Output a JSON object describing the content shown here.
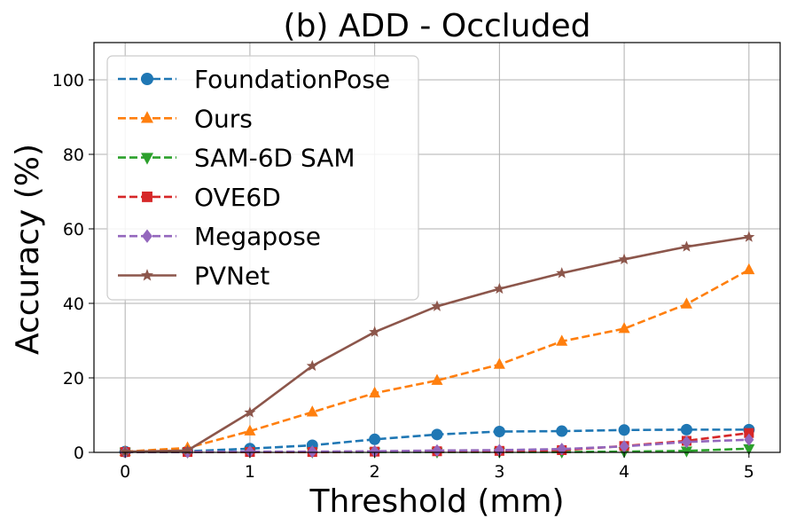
{
  "chart_data": {
    "type": "line",
    "title": "(b) ADD - Occluded",
    "xlabel": "Threshold (mm)",
    "ylabel": "Accuracy (%)",
    "xlim": [
      -0.25,
      5.25
    ],
    "ylim": [
      0,
      110
    ],
    "xticks": [
      0,
      1,
      2,
      3,
      4,
      5
    ],
    "yticks": [
      0,
      20,
      40,
      60,
      80,
      100
    ],
    "grid": true,
    "legend_position": "top-left",
    "x": [
      0,
      0.5,
      1,
      1.5,
      2,
      2.5,
      3,
      3.5,
      4,
      4.5,
      5
    ],
    "series": [
      {
        "name": "FoundationPose",
        "color": "#1f77b4",
        "marker": "circle",
        "linestyle": "dashed",
        "values": [
          0.2,
          0.3,
          1.0,
          1.9,
          3.5,
          4.8,
          5.6,
          5.7,
          6.0,
          6.1,
          6.1
        ]
      },
      {
        "name": "Ours",
        "color": "#ff7f0e",
        "marker": "triangle-up",
        "linestyle": "dashed",
        "values": [
          0.2,
          1.2,
          5.7,
          10.8,
          15.9,
          19.3,
          23.6,
          29.8,
          33.2,
          39.8,
          49.0
        ]
      },
      {
        "name": "SAM-6D SAM",
        "color": "#2ca02c",
        "marker": "triangle-down",
        "linestyle": "dashed",
        "values": [
          0.1,
          0.1,
          0.1,
          0.1,
          0.1,
          0.1,
          0.1,
          0.1,
          0.2,
          0.4,
          1.0
        ]
      },
      {
        "name": "OVE6D",
        "color": "#d62728",
        "marker": "square",
        "linestyle": "dashed",
        "values": [
          0.1,
          0.1,
          0.1,
          0.1,
          0.2,
          0.3,
          0.4,
          0.6,
          1.7,
          3.1,
          5.2
        ]
      },
      {
        "name": "Megapose",
        "color": "#9467bd",
        "marker": "diamond",
        "linestyle": "dashed",
        "values": [
          0.1,
          0.1,
          0.2,
          0.2,
          0.3,
          0.5,
          0.6,
          0.9,
          1.6,
          2.8,
          3.4
        ]
      },
      {
        "name": "PVNet",
        "color": "#8c564b",
        "marker": "star",
        "linestyle": "solid",
        "values": [
          0.2,
          0.5,
          10.7,
          23.2,
          32.3,
          39.2,
          43.9,
          48.1,
          51.8,
          55.2,
          57.8
        ]
      }
    ]
  }
}
